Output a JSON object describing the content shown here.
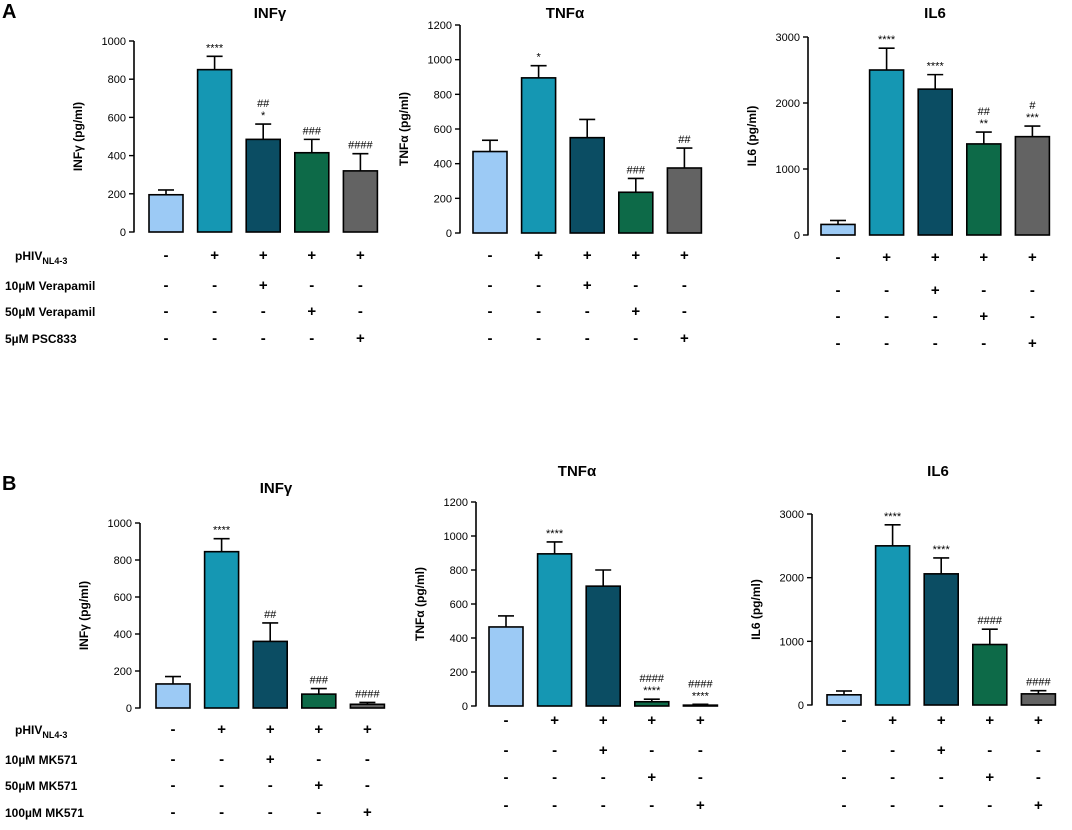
{
  "figure": {
    "panels": [
      {
        "label": "A",
        "row_labels": [
          {
            "text": "pHIV",
            "sub": "NL4-3"
          },
          {
            "text": "10µM Verapamil"
          },
          {
            "text": "50µM Verapamil"
          },
          {
            "text": "5µM PSC833"
          }
        ]
      },
      {
        "label": "B",
        "row_labels": [
          {
            "text": "pHIV",
            "sub": "NL4-3"
          },
          {
            "text": "10µM MK571"
          },
          {
            "text": "50µM MK571"
          },
          {
            "text": "100µM MK571"
          }
        ]
      }
    ],
    "bar_colors": [
      "#9ccaf5",
      "#1597b3",
      "#0b4d63",
      "#0d6a48",
      "#636363"
    ],
    "condition_matrix": [
      [
        "-",
        "+",
        "+",
        "+",
        "+"
      ],
      [
        "-",
        "-",
        "+",
        "-",
        "-"
      ],
      [
        "-",
        "-",
        "-",
        "+",
        "-"
      ],
      [
        "-",
        "-",
        "-",
        "-",
        "+"
      ]
    ]
  },
  "chart_data": [
    {
      "type": "bar",
      "panel": "A",
      "title": "INFγ",
      "ylabel": "INFγ (pg/ml)",
      "ylim": [
        0,
        1000
      ],
      "yticks": [
        0,
        200,
        400,
        600,
        800,
        1000
      ],
      "categories": [
        "control",
        "pHIV",
        "pHIV+10µM Verapamil",
        "pHIV+50µM Verapamil",
        "pHIV+5µM PSC833"
      ],
      "values": [
        195,
        850,
        485,
        415,
        320
      ],
      "errors": [
        25,
        70,
        80,
        70,
        90
      ],
      "significance": [
        [
          ""
        ],
        [
          "****"
        ],
        [
          "##",
          "*"
        ],
        [
          "###"
        ],
        [
          "####"
        ]
      ]
    },
    {
      "type": "bar",
      "panel": "A",
      "title": "TNFα",
      "ylabel": "TNFα (pg/ml)",
      "ylim": [
        0,
        1200
      ],
      "yticks": [
        0,
        200,
        400,
        600,
        800,
        1000,
        1200
      ],
      "categories": [
        "control",
        "pHIV",
        "pHIV+10µM Verapamil",
        "pHIV+50µM Verapamil",
        "pHIV+5µM PSC833"
      ],
      "values": [
        470,
        895,
        550,
        235,
        375
      ],
      "errors": [
        65,
        70,
        105,
        80,
        115
      ],
      "significance": [
        [
          ""
        ],
        [
          "*"
        ],
        [
          ""
        ],
        [
          "###"
        ],
        [
          "##"
        ]
      ]
    },
    {
      "type": "bar",
      "panel": "A",
      "title": "IL6",
      "ylabel": "IL6 (pg/ml)",
      "ylim": [
        0,
        3000
      ],
      "yticks": [
        0,
        1000,
        2000,
        3000
      ],
      "categories": [
        "control",
        "pHIV",
        "pHIV+10µM Verapamil",
        "pHIV+50µM Verapamil",
        "pHIV+5µM PSC833"
      ],
      "values": [
        160,
        2500,
        2210,
        1380,
        1490
      ],
      "errors": [
        60,
        330,
        220,
        180,
        160
      ],
      "significance": [
        [
          ""
        ],
        [
          "****"
        ],
        [
          "****"
        ],
        [
          "##",
          "**"
        ],
        [
          "#",
          "***"
        ]
      ]
    },
    {
      "type": "bar",
      "panel": "B",
      "title": "INFγ",
      "ylabel": "INFγ (pg/ml)",
      "ylim": [
        0,
        1000
      ],
      "yticks": [
        0,
        200,
        400,
        600,
        800,
        1000
      ],
      "categories": [
        "control",
        "pHIV",
        "pHIV+10µM MK571",
        "pHIV+50µM MK571",
        "pHIV+100µM MK571"
      ],
      "values": [
        130,
        845,
        360,
        75,
        20
      ],
      "errors": [
        40,
        70,
        100,
        30,
        10
      ],
      "significance": [
        [
          ""
        ],
        [
          "****"
        ],
        [
          "##"
        ],
        [
          "###"
        ],
        [
          "####"
        ]
      ]
    },
    {
      "type": "bar",
      "panel": "B",
      "title": "TNFα",
      "ylabel": "TNFα (pg/ml)",
      "ylim": [
        0,
        1200
      ],
      "yticks": [
        0,
        200,
        400,
        600,
        800,
        1000,
        1200
      ],
      "categories": [
        "control",
        "pHIV",
        "pHIV+10µM MK571",
        "pHIV+50µM MK571",
        "pHIV+100µM MK571"
      ],
      "values": [
        465,
        895,
        705,
        25,
        5
      ],
      "errors": [
        65,
        70,
        95,
        15,
        5
      ],
      "significance": [
        [
          ""
        ],
        [
          "****"
        ],
        [
          ""
        ],
        [
          "####",
          "****"
        ],
        [
          "####",
          "****"
        ]
      ]
    },
    {
      "type": "bar",
      "panel": "B",
      "title": "IL6",
      "ylabel": "IL6 (pg/ml)",
      "ylim": [
        0,
        3000
      ],
      "yticks": [
        0,
        1000,
        2000,
        3000
      ],
      "categories": [
        "control",
        "pHIV",
        "pHIV+10µM MK571",
        "pHIV+50µM MK571",
        "pHIV+100µM MK571"
      ],
      "values": [
        160,
        2500,
        2060,
        950,
        175
      ],
      "errors": [
        60,
        330,
        250,
        240,
        50
      ],
      "significance": [
        [
          ""
        ],
        [
          "****"
        ],
        [
          "****"
        ],
        [
          "####"
        ],
        [
          "####"
        ]
      ]
    }
  ]
}
